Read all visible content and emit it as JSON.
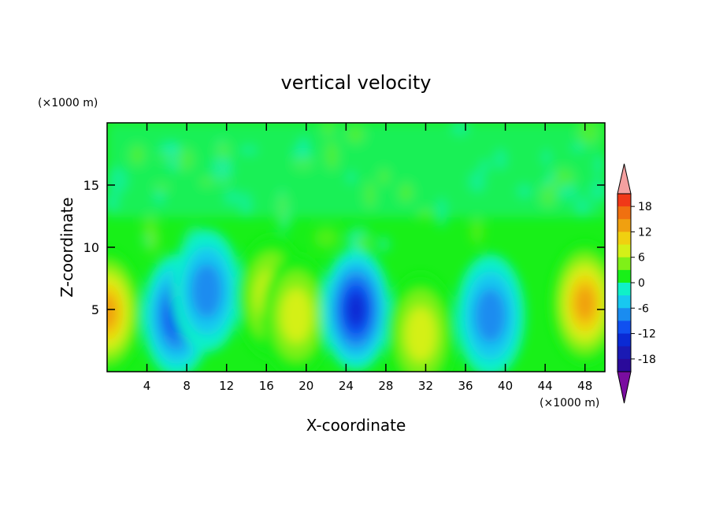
{
  "chart_data": {
    "type": "heatmap",
    "title": "vertical velocity",
    "xlabel": "X-coordinate",
    "ylabel": "Z-coordinate",
    "x_unit": "(×1000 m)",
    "y_unit": "(×1000 m)",
    "xlim": [
      0,
      50
    ],
    "ylim": [
      0,
      20
    ],
    "x_ticks": [
      4,
      8,
      12,
      16,
      20,
      24,
      28,
      32,
      36,
      40,
      44,
      48
    ],
    "y_ticks": [
      5,
      10,
      15
    ],
    "colorbar": {
      "ticks": [
        "18",
        "12",
        "6",
        "0",
        "-6",
        "-12",
        "-18"
      ],
      "levels": [
        -21,
        -18,
        -15,
        -12,
        -9,
        -6,
        -3,
        0,
        3,
        6,
        9,
        12,
        15,
        18,
        21
      ],
      "colors": [
        "#7a0da0",
        "#2a0a9a",
        "#1a1ab4",
        "#0a2ad4",
        "#1050f0",
        "#1a8cf0",
        "#18c8f0",
        "#10f0c8",
        "#18f018",
        "#7ff018",
        "#d4f018",
        "#f0d010",
        "#f0a010",
        "#f07010",
        "#f03818",
        "#f4a0a0"
      ]
    },
    "features": [
      {
        "type": "updraft",
        "x": 0,
        "z": 4.8,
        "peak": 14
      },
      {
        "type": "downdraft",
        "x": 7,
        "z": 4.5,
        "peak": -12
      },
      {
        "type": "downdraft",
        "x": 10,
        "z": 6.5,
        "peak": -9
      },
      {
        "type": "updraft",
        "x": 16.5,
        "z": 6,
        "peak": 9
      },
      {
        "type": "updraft",
        "x": 19,
        "z": 4.5,
        "peak": 10
      },
      {
        "type": "downdraft",
        "x": 25,
        "z": 5,
        "peak": -14
      },
      {
        "type": "updraft",
        "x": 31.5,
        "z": 3,
        "peak": 9
      },
      {
        "type": "downdraft",
        "x": 38.5,
        "z": 4.5,
        "peak": -10
      },
      {
        "type": "updraft",
        "x": 48,
        "z": 5.5,
        "peak": 14
      }
    ]
  }
}
